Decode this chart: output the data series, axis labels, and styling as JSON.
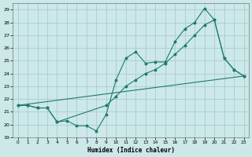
{
  "xlabel": "Humidex (Indice chaleur)",
  "bg_color": "#cce8e8",
  "grid_color": "#aacccc",
  "line_color": "#1e7b6e",
  "xlim": [
    -0.5,
    23.5
  ],
  "ylim": [
    19,
    29.5
  ],
  "xticks": [
    0,
    1,
    2,
    3,
    4,
    5,
    6,
    7,
    8,
    9,
    10,
    11,
    12,
    13,
    14,
    15,
    16,
    17,
    18,
    19,
    20,
    21,
    22,
    23
  ],
  "yticks": [
    19,
    20,
    21,
    22,
    23,
    24,
    25,
    26,
    27,
    28,
    29
  ],
  "series1_x": [
    0,
    1,
    2,
    3,
    4,
    5,
    6,
    7,
    8,
    9,
    10,
    11,
    12,
    13,
    14,
    15,
    16,
    17,
    18,
    19,
    20,
    21,
    22,
    23
  ],
  "series1_y": [
    21.5,
    21.5,
    21.3,
    21.3,
    20.2,
    20.3,
    19.9,
    19.9,
    19.5,
    20.8,
    23.5,
    25.2,
    25.7,
    24.8,
    24.9,
    24.9,
    26.5,
    27.5,
    28.0,
    29.1,
    28.2,
    25.2,
    24.3,
    23.8
  ],
  "series2_x": [
    0,
    1,
    2,
    3,
    4,
    9,
    10,
    11,
    12,
    13,
    14,
    15,
    16,
    17,
    18,
    19,
    20,
    21,
    22,
    23
  ],
  "series2_y": [
    21.5,
    21.5,
    21.3,
    21.3,
    20.2,
    21.5,
    22.2,
    23.0,
    23.5,
    24.0,
    24.3,
    24.8,
    25.5,
    26.2,
    27.0,
    27.8,
    28.2,
    25.2,
    24.3,
    23.8
  ],
  "series3_x": [
    0,
    23
  ],
  "series3_y": [
    21.5,
    23.8
  ]
}
